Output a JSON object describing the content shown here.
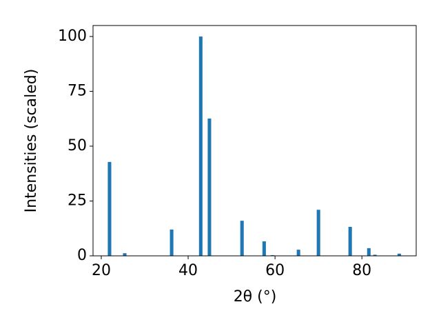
{
  "chart_data": {
    "type": "bar",
    "x_label": "2θ (°)",
    "y_label": "Intensities (scaled)",
    "x": [
      21.9,
      25.4,
      36.2,
      42.9,
      44.9,
      52.4,
      57.5,
      59.4,
      65.4,
      70.0,
      77.3,
      81.6,
      83.0,
      88.6
    ],
    "values": [
      42.8,
      1.2,
      12,
      100,
      62.6,
      16,
      6.6,
      0.3,
      2.8,
      21,
      13.2,
      3.5,
      0.5,
      1
    ],
    "color": "#1f77b4",
    "xlim": [
      18.1,
      92.5
    ],
    "xticks": [
      20,
      40,
      60,
      80
    ],
    "ylim": [
      0,
      105
    ],
    "yticks": [
      0,
      25,
      50,
      75,
      100
    ],
    "grid": false
  }
}
